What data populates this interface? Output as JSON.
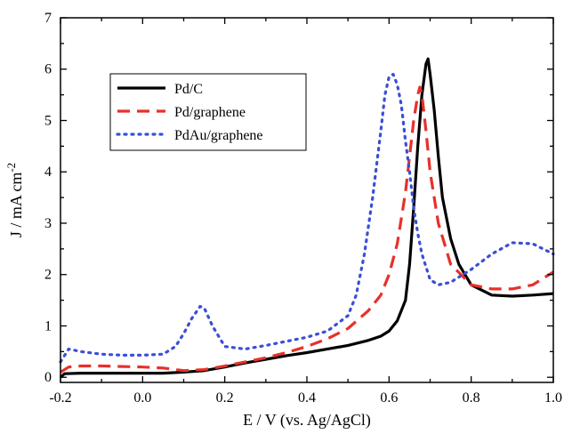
{
  "chart_data": {
    "type": "line",
    "title": "",
    "xlabel": "E / V (vs. Ag/AgCl)",
    "ylabel_main": "J / mA cm",
    "ylabel_sup": "-2",
    "xlim": [
      -0.2,
      1.0
    ],
    "ylim": [
      -0.1,
      7.0
    ],
    "x_ticks": [
      -0.2,
      0.0,
      0.2,
      0.4,
      0.6,
      0.8,
      1.0
    ],
    "x_tick_labels": [
      "-0.2",
      "0.0",
      "0.2",
      "0.4",
      "0.6",
      "0.8",
      "1.0"
    ],
    "y_ticks": [
      0,
      1,
      2,
      3,
      4,
      5,
      6,
      7
    ],
    "y_tick_labels": [
      "0",
      "1",
      "2",
      "3",
      "4",
      "5",
      "6",
      "7"
    ],
    "grid": false,
    "legend_position": "upper-left",
    "series": [
      {
        "name": "Pd/C",
        "color": "#000000",
        "style": "solid",
        "x": [
          -0.2,
          -0.19,
          -0.15,
          -0.1,
          0.0,
          0.05,
          0.1,
          0.15,
          0.2,
          0.25,
          0.3,
          0.35,
          0.4,
          0.45,
          0.5,
          0.55,
          0.58,
          0.6,
          0.62,
          0.64,
          0.65,
          0.66,
          0.67,
          0.68,
          0.69,
          0.695,
          0.7,
          0.71,
          0.72,
          0.73,
          0.75,
          0.77,
          0.8,
          0.85,
          0.9,
          0.95,
          1.0
        ],
        "y": [
          0.0,
          0.07,
          0.08,
          0.08,
          0.08,
          0.08,
          0.1,
          0.13,
          0.2,
          0.28,
          0.35,
          0.42,
          0.48,
          0.55,
          0.62,
          0.72,
          0.8,
          0.9,
          1.1,
          1.5,
          2.2,
          3.3,
          4.5,
          5.5,
          6.1,
          6.2,
          5.9,
          5.2,
          4.3,
          3.5,
          2.7,
          2.2,
          1.8,
          1.6,
          1.58,
          1.6,
          1.63
        ]
      },
      {
        "name": "Pd/graphene",
        "color": "#e8302a",
        "style": "dashed",
        "x": [
          -0.2,
          -0.18,
          -0.15,
          -0.1,
          0.0,
          0.05,
          0.08,
          0.1,
          0.15,
          0.2,
          0.25,
          0.3,
          0.35,
          0.4,
          0.45,
          0.5,
          0.55,
          0.58,
          0.6,
          0.62,
          0.64,
          0.65,
          0.66,
          0.67,
          0.675,
          0.68,
          0.69,
          0.7,
          0.72,
          0.75,
          0.8,
          0.85,
          0.9,
          0.95,
          1.0
        ],
        "y": [
          0.1,
          0.2,
          0.22,
          0.22,
          0.2,
          0.18,
          0.15,
          0.13,
          0.15,
          0.22,
          0.3,
          0.38,
          0.48,
          0.6,
          0.75,
          0.95,
          1.3,
          1.6,
          2.0,
          2.6,
          3.6,
          4.3,
          5.0,
          5.5,
          5.65,
          5.5,
          4.8,
          4.0,
          3.0,
          2.2,
          1.8,
          1.72,
          1.72,
          1.8,
          2.05
        ]
      },
      {
        "name": "PdAu/graphene",
        "color": "#3a4fd6",
        "style": "dotted",
        "x": [
          -0.2,
          -0.18,
          -0.15,
          -0.1,
          -0.05,
          0.0,
          0.05,
          0.08,
          0.1,
          0.12,
          0.14,
          0.15,
          0.17,
          0.2,
          0.25,
          0.3,
          0.35,
          0.4,
          0.45,
          0.5,
          0.52,
          0.54,
          0.56,
          0.58,
          0.59,
          0.6,
          0.61,
          0.62,
          0.63,
          0.64,
          0.65,
          0.66,
          0.67,
          0.68,
          0.7,
          0.72,
          0.75,
          0.8,
          0.85,
          0.9,
          0.95,
          1.0
        ],
        "y": [
          0.3,
          0.55,
          0.5,
          0.45,
          0.43,
          0.43,
          0.45,
          0.6,
          0.85,
          1.15,
          1.38,
          1.35,
          1.0,
          0.6,
          0.55,
          0.62,
          0.7,
          0.78,
          0.9,
          1.2,
          1.6,
          2.4,
          3.5,
          4.8,
          5.5,
          5.85,
          5.9,
          5.7,
          5.3,
          4.6,
          4.0,
          3.3,
          2.8,
          2.4,
          1.9,
          1.8,
          1.85,
          2.1,
          2.4,
          2.62,
          2.6,
          2.4
        ]
      }
    ]
  }
}
